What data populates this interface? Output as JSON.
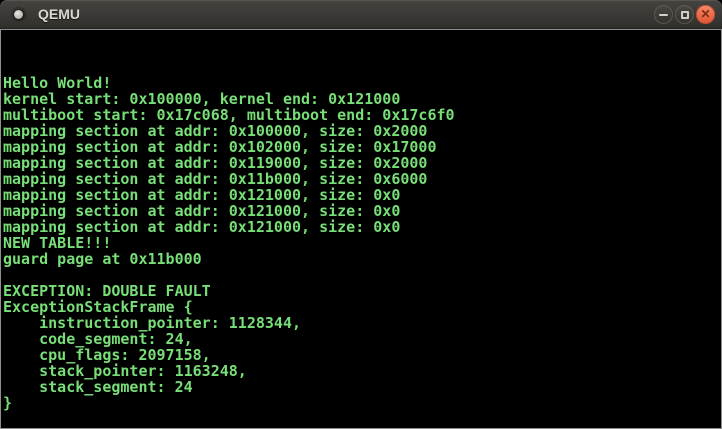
{
  "window": {
    "title": "QEMU",
    "controls": [
      {
        "name": "minimize"
      },
      {
        "name": "maximize"
      },
      {
        "name": "close",
        "glyph": "✕"
      }
    ]
  },
  "terminal": {
    "background": "#000000",
    "text_color": "#78de78",
    "lines": [
      "Hello World!",
      "kernel start: 0x100000, kernel end: 0x121000",
      "multiboot start: 0x17c068, multiboot end: 0x17c6f0",
      "mapping section at addr: 0x100000, size: 0x2000",
      "mapping section at addr: 0x102000, size: 0x17000",
      "mapping section at addr: 0x119000, size: 0x2000",
      "mapping section at addr: 0x11b000, size: 0x6000",
      "mapping section at addr: 0x121000, size: 0x0",
      "mapping section at addr: 0x121000, size: 0x0",
      "mapping section at addr: 0x121000, size: 0x0",
      "NEW TABLE!!!",
      "guard page at 0x11b000",
      "",
      "EXCEPTION: DOUBLE FAULT",
      "ExceptionStackFrame {",
      "    instruction_pointer: 1128344,",
      "    code_segment: 24,",
      "    cpu_flags: 2097158,",
      "    stack_pointer: 1163248,",
      "    stack_segment: 24",
      "}"
    ]
  }
}
